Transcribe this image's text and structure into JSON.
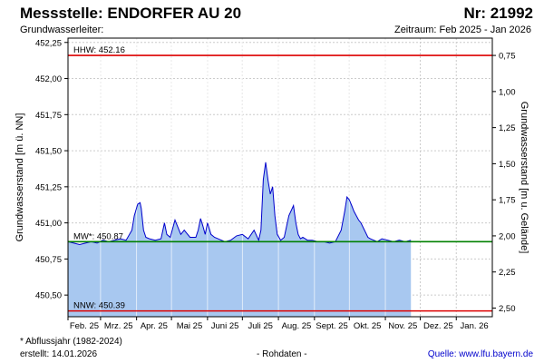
{
  "header": {
    "title": "Messstelle: ENDORFER AU 20",
    "number": "Nr: 21992",
    "subtitle": "Grundwasserleiter:",
    "period": "Zeitraum: Feb 2025 - Jan 2026"
  },
  "footer": {
    "footnote": "* Abflussjahr (1982-2024)",
    "created": "erstellt:  14.01.2026",
    "raw": "- Rohdaten -",
    "source": "Quelle: www.lfu.bayern.de"
  },
  "colors": {
    "series_line": "#0000cc",
    "series_fill": "#a8c8f0",
    "hhw": "#dd0000",
    "nnw": "#dd0000",
    "mw": "#008000",
    "grid": "#cccccc"
  },
  "chart_data": {
    "type": "area",
    "ylabel_left": "Grundwasserstand [m ü. NN]",
    "ylabel_right": "Grundwasserstand [m u. Gelände]",
    "ylim": [
      450.35,
      452.28
    ],
    "yticks_left": [
      "452,25",
      "452,00",
      "451,75",
      "451,50",
      "451,25",
      "451,00",
      "450,75",
      "450,50"
    ],
    "yticks_left_values": [
      452.25,
      452.0,
      451.75,
      451.5,
      451.25,
      451.0,
      450.75,
      450.5
    ],
    "yticks_right": [
      "0,75",
      "1,00",
      "1,25",
      "1,50",
      "1,75",
      "2,00",
      "2,25",
      "2,50"
    ],
    "yticks_right_values": [
      0.75,
      1.0,
      1.25,
      1.5,
      1.75,
      2.0,
      2.25,
      2.5
    ],
    "depth_reference": 452.91,
    "xticks": [
      "Feb. 25",
      "Mrz. 25",
      "Apr. 25",
      "Mai 25",
      "Juni 25",
      "Juli 25",
      "Aug. 25",
      "Sept. 25",
      "Okt. 25",
      "Nov. 25",
      "Dez. 25",
      "Jan. 26"
    ],
    "x_unit": "day",
    "x_range": [
      0,
      365
    ],
    "month_starts": [
      0,
      28,
      59,
      89,
      120,
      150,
      181,
      212,
      242,
      273,
      303,
      334
    ],
    "reference_lines": [
      {
        "name": "HHW",
        "label": "HHW: 452.16",
        "value": 452.16
      },
      {
        "name": "MW",
        "label": "MW*: 450.87",
        "value": 450.87
      },
      {
        "name": "NNW",
        "label": "NNW: 450.39",
        "value": 450.39
      }
    ],
    "series": [
      {
        "x": [
          0,
          5,
          10,
          15,
          20,
          25,
          30,
          35,
          40,
          45,
          50,
          55,
          57,
          60,
          62,
          63,
          65,
          67,
          70,
          75,
          80,
          83,
          85,
          88,
          92,
          97,
          100,
          105,
          110,
          112,
          114,
          116,
          118,
          120,
          123,
          126,
          129,
          132,
          135,
          140,
          145,
          150,
          155,
          160,
          164,
          166,
          168,
          170,
          172,
          174,
          176,
          178,
          180,
          183,
          186,
          190,
          194,
          196,
          198,
          200,
          202,
          204,
          206,
          210,
          215,
          220,
          225,
          230,
          235,
          238,
          240,
          242,
          244,
          246,
          248,
          250,
          252,
          255,
          258,
          260,
          263,
          266,
          270,
          275,
          280,
          285,
          290,
          295
        ],
        "y": [
          450.87,
          450.86,
          450.85,
          450.86,
          450.87,
          450.86,
          450.88,
          450.87,
          450.88,
          450.89,
          450.88,
          450.95,
          451.05,
          451.13,
          451.14,
          451.1,
          450.95,
          450.9,
          450.89,
          450.88,
          450.89,
          451.0,
          450.92,
          450.9,
          451.02,
          450.92,
          450.95,
          450.9,
          450.9,
          450.95,
          451.03,
          450.98,
          450.92,
          451.0,
          450.92,
          450.9,
          450.89,
          450.88,
          450.87,
          450.88,
          450.91,
          450.92,
          450.89,
          450.95,
          450.88,
          450.95,
          451.3,
          451.42,
          451.3,
          451.2,
          451.25,
          451.05,
          450.92,
          450.88,
          450.9,
          451.05,
          451.12,
          451.0,
          450.92,
          450.89,
          450.9,
          450.89,
          450.88,
          450.88,
          450.87,
          450.87,
          450.86,
          450.87,
          450.95,
          451.08,
          451.18,
          451.16,
          451.12,
          451.08,
          451.05,
          451.02,
          451.0,
          450.95,
          450.9,
          450.89,
          450.88,
          450.87,
          450.89,
          450.88,
          450.87,
          450.88,
          450.87,
          450.88
        ]
      }
    ]
  }
}
